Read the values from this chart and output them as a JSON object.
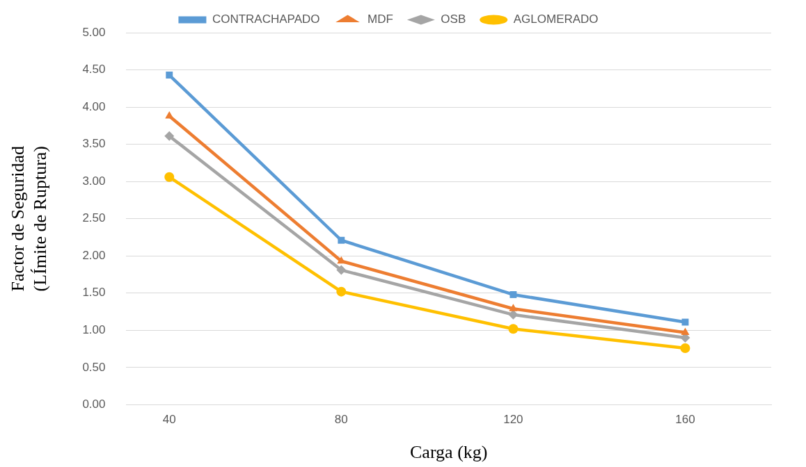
{
  "chart_data": {
    "type": "line",
    "xlabel": "Carga (kg)",
    "ylabel": "Factor de Seguridad\n(LÍmite de Ruptura)",
    "x": [
      40,
      80,
      120,
      160
    ],
    "xlim": [
      30,
      180
    ],
    "xticks": [
      40,
      80,
      120,
      160
    ],
    "ylim": [
      0,
      5
    ],
    "yticks": [
      {
        "value": 0,
        "label": "0.00"
      },
      {
        "value": 0.5,
        "label": "0.50"
      },
      {
        "value": 1,
        "label": "1.00"
      },
      {
        "value": 1.5,
        "label": "1.50"
      },
      {
        "value": 2,
        "label": "2.00"
      },
      {
        "value": 2.5,
        "label": "2.50"
      },
      {
        "value": 3,
        "label": "3.00"
      },
      {
        "value": 3.5,
        "label": "3.50"
      },
      {
        "value": 4,
        "label": "4.00"
      },
      {
        "value": 4.5,
        "label": "4.50"
      },
      {
        "value": 5,
        "label": "5.00"
      }
    ],
    "grid": "y",
    "legend": "top",
    "line_style": "solid",
    "series": [
      {
        "name": "CONTRACHAPADO",
        "color": "#5b9bd5",
        "marker": "square",
        "values": [
          4.43,
          2.21,
          1.48,
          1.11
        ]
      },
      {
        "name": "MDF",
        "color": "#ed7d31",
        "marker": "triangle",
        "values": [
          3.88,
          1.93,
          1.29,
          0.97
        ]
      },
      {
        "name": "OSB",
        "color": "#a5a5a5",
        "marker": "diamond",
        "values": [
          3.61,
          1.81,
          1.21,
          0.9
        ]
      },
      {
        "name": "AGLOMERADO",
        "color": "#ffc000",
        "marker": "circle",
        "values": [
          3.06,
          1.52,
          1.02,
          0.76
        ]
      }
    ]
  }
}
